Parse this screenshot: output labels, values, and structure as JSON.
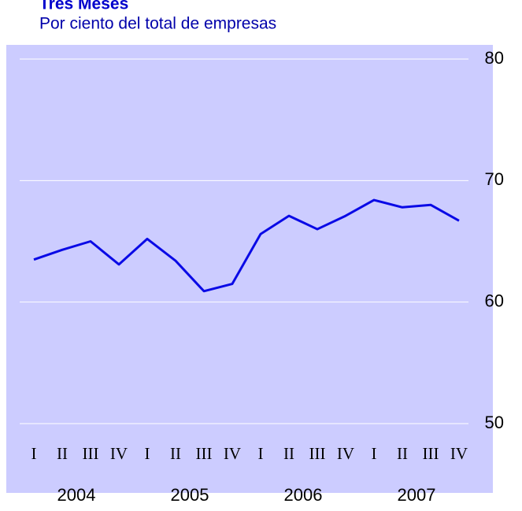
{
  "chart_data": {
    "type": "line",
    "title": "Tres Meses",
    "subtitle": "Por ciento del total de empresas",
    "categories": [
      "I",
      "II",
      "III",
      "IV",
      "I",
      "II",
      "III",
      "IV",
      "I",
      "II",
      "III",
      "IV",
      "I",
      "II",
      "III",
      "IV"
    ],
    "groups": [
      "2004",
      "2005",
      "2006",
      "2007"
    ],
    "series": [
      {
        "color": "#0a0ae6",
        "values": [
          63.5,
          64.3,
          65.0,
          63.1,
          65.2,
          63.4,
          60.9,
          61.5,
          65.6,
          67.1,
          66.0,
          67.1,
          68.4,
          67.8,
          68.0,
          66.7
        ]
      }
    ],
    "ylim": [
      50,
      80
    ],
    "yticks": [
      50,
      60,
      70,
      80
    ],
    "grid": true
  }
}
